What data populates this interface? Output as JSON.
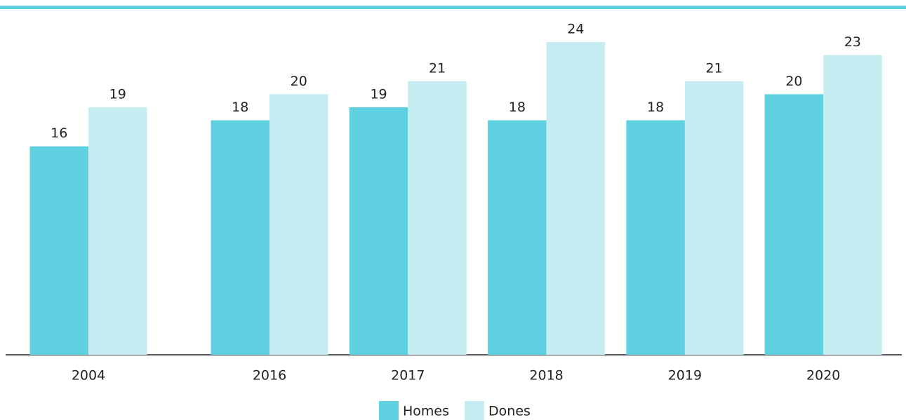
{
  "chart_data": {
    "type": "bar",
    "categories": [
      "2004",
      "2016",
      "2017",
      "2018",
      "2019",
      "2020"
    ],
    "series": [
      {
        "name": "Homes",
        "color": "#5fd0df",
        "values": [
          16,
          18,
          19,
          18,
          18,
          20
        ]
      },
      {
        "name": "Dones",
        "color": "#c5edf2",
        "values": [
          19,
          20,
          21,
          24,
          21,
          23
        ]
      }
    ],
    "ylim": [
      0,
      24
    ]
  }
}
